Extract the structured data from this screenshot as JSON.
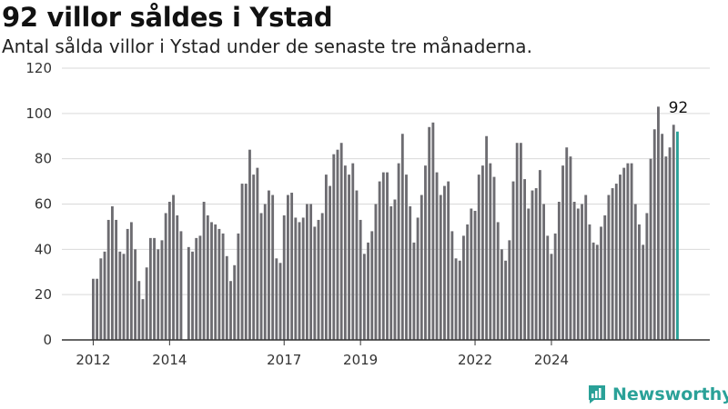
{
  "header": {
    "title": "92 villor såldes i Ystad",
    "subtitle": "Antal sålda villor i Ystad under de senaste tre månaderna."
  },
  "branding": {
    "logo_text": "Newsworthy",
    "logo_icon": "newsworthy-chart-icon",
    "logo_color": "#2aa198"
  },
  "chart_data": {
    "type": "bar",
    "title": "92 villor såldes i Ystad",
    "subtitle": "Antal sålda villor i Ystad under de senaste tre månaderna.",
    "xlabel": "",
    "ylabel": "",
    "ylim": [
      0,
      120
    ],
    "yticks": [
      0,
      20,
      40,
      60,
      80,
      100,
      120
    ],
    "xticks": [
      {
        "label": "2012",
        "index": 0
      },
      {
        "label": "2014",
        "index": 20
      },
      {
        "label": "2017",
        "index": 50
      },
      {
        "label": "2019",
        "index": 70
      },
      {
        "label": "2022",
        "index": 100
      },
      {
        "label": "2024",
        "index": 120
      }
    ],
    "grid": true,
    "bar_color": "#6d6c71",
    "highlight_color": "#2aa198",
    "highlight_label": "92",
    "values": [
      27,
      27,
      36,
      39,
      53,
      59,
      53,
      39,
      38,
      49,
      52,
      40,
      26,
      18,
      32,
      45,
      45,
      40,
      44,
      56,
      61,
      64,
      55,
      48,
      0,
      41,
      39,
      45,
      46,
      61,
      55,
      52,
      51,
      49,
      47,
      37,
      26,
      33,
      47,
      69,
      69,
      84,
      73,
      76,
      56,
      60,
      66,
      64,
      36,
      34,
      55,
      64,
      65,
      54,
      52,
      54,
      60,
      60,
      50,
      53,
      56,
      73,
      68,
      82,
      84,
      87,
      77,
      73,
      78,
      66,
      53,
      38,
      43,
      48,
      60,
      70,
      74,
      74,
      59,
      62,
      78,
      91,
      73,
      59,
      43,
      54,
      64,
      77,
      94,
      96,
      74,
      64,
      68,
      70,
      48,
      36,
      35,
      46,
      51,
      58,
      57,
      73,
      77,
      90,
      78,
      72,
      52,
      40,
      35,
      44,
      70,
      87,
      87,
      71,
      58,
      66,
      67,
      75,
      60,
      46,
      38,
      47,
      61,
      77,
      85,
      81,
      61,
      58,
      60,
      64,
      51,
      43,
      42,
      50,
      55,
      64,
      67,
      69,
      73,
      76,
      78,
      78,
      60,
      51,
      42,
      56,
      80,
      93,
      103,
      91,
      81,
      85,
      95,
      92
    ]
  }
}
